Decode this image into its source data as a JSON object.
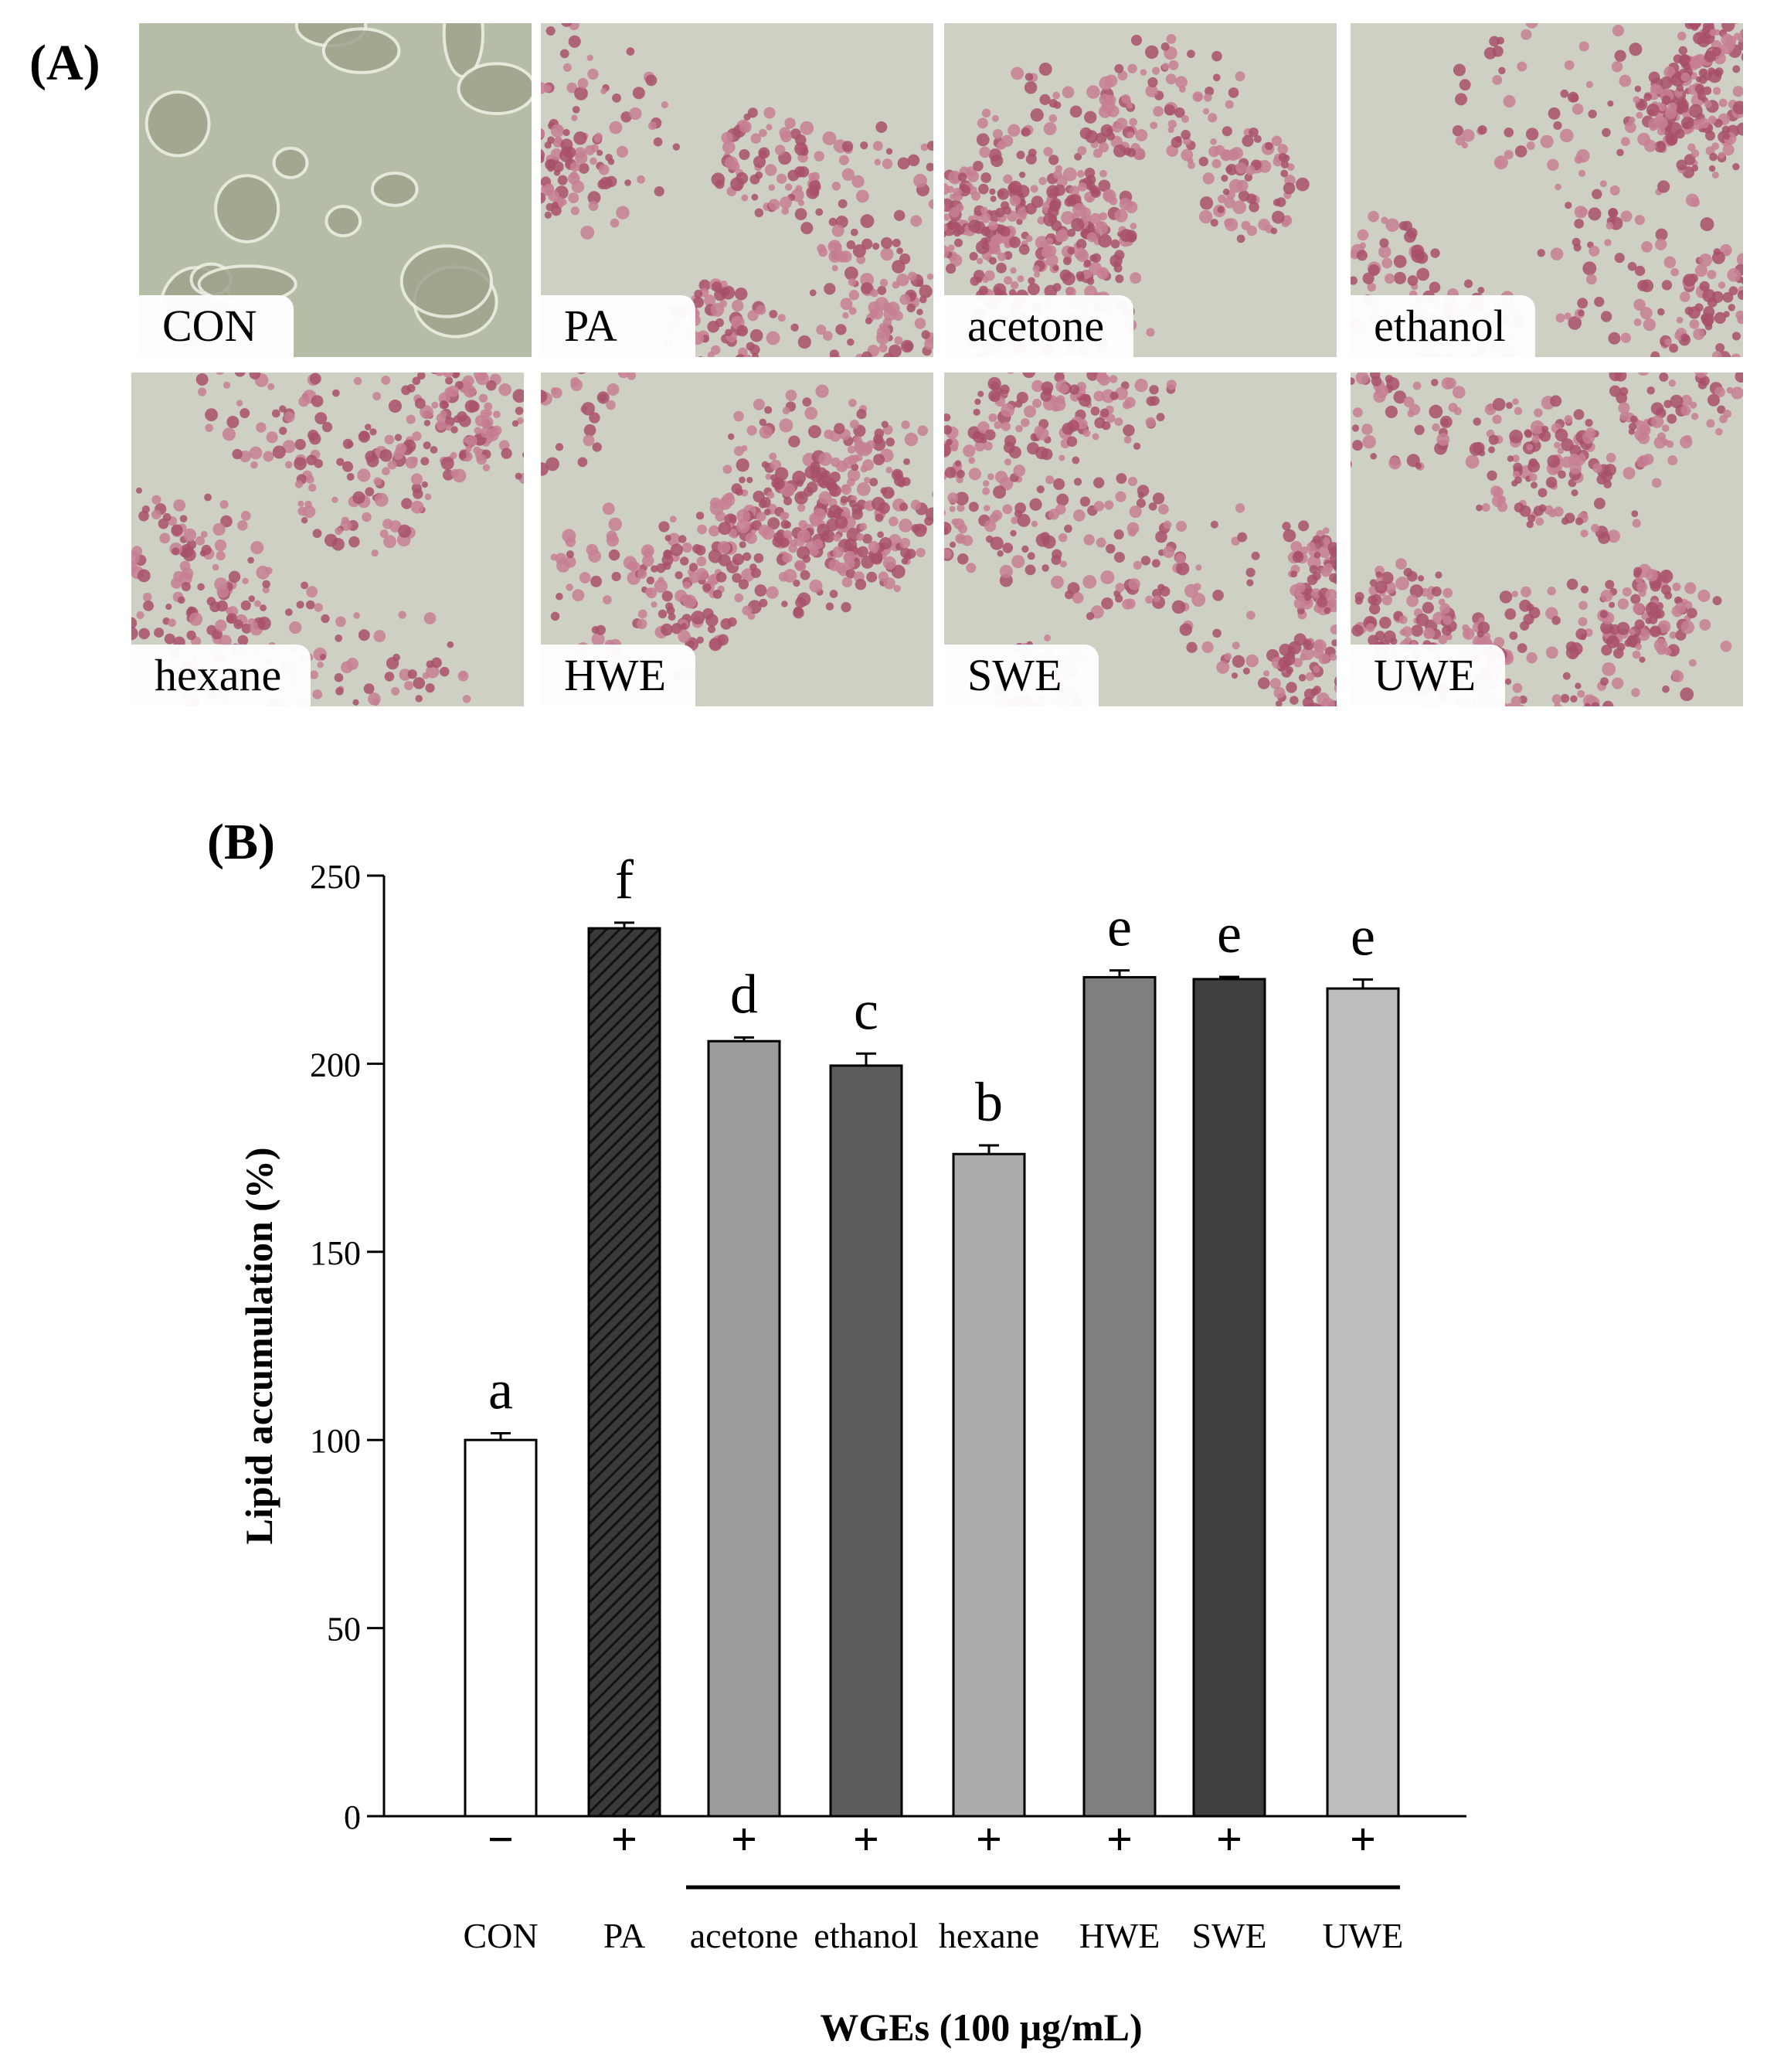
{
  "panel_a": {
    "label": "(A)",
    "images": [
      {
        "label": "CON",
        "stain": "control"
      },
      {
        "label": "PA",
        "stain": "oil-red"
      },
      {
        "label": "acetone",
        "stain": "oil-red"
      },
      {
        "label": "ethanol",
        "stain": "oil-red"
      },
      {
        "label": "hexane",
        "stain": "oil-red"
      },
      {
        "label": "HWE",
        "stain": "oil-red"
      },
      {
        "label": "SWE",
        "stain": "oil-red"
      },
      {
        "label": "UWE",
        "stain": "oil-red"
      }
    ]
  },
  "panel_b": {
    "label": "(B)"
  },
  "chart_data": {
    "type": "bar",
    "title": "",
    "ylabel": "Lipid accumulation (%)",
    "xlabel": "WGEs (100 μg/mL)",
    "ylim": [
      0,
      250
    ],
    "yticks": [
      0,
      50,
      100,
      150,
      200,
      250
    ],
    "categories": [
      "CON",
      "PA",
      "acetone",
      "ethanol",
      "hexane",
      "HWE",
      "SWE",
      "UWE"
    ],
    "values": [
      100,
      236,
      206,
      199.5,
      176,
      223,
      222.5,
      220
    ],
    "errors": [
      1.8,
      1.5,
      1.0,
      3.2,
      2.3,
      1.8,
      0.6,
      2.4
    ],
    "significance_letters": [
      "a",
      "f",
      "d",
      "c",
      "b",
      "e",
      "e",
      "e"
    ],
    "pa_treatment": [
      "−",
      "+",
      "+",
      "+",
      "+",
      "+",
      "+",
      "+"
    ],
    "bar_fills": [
      "#ffffff",
      "hatch",
      "#9c9c9c",
      "#5c5c5c",
      "#ababab",
      "#7f7f7f",
      "#404040",
      "#bdbdbd"
    ],
    "grid": false,
    "legend": "none"
  }
}
